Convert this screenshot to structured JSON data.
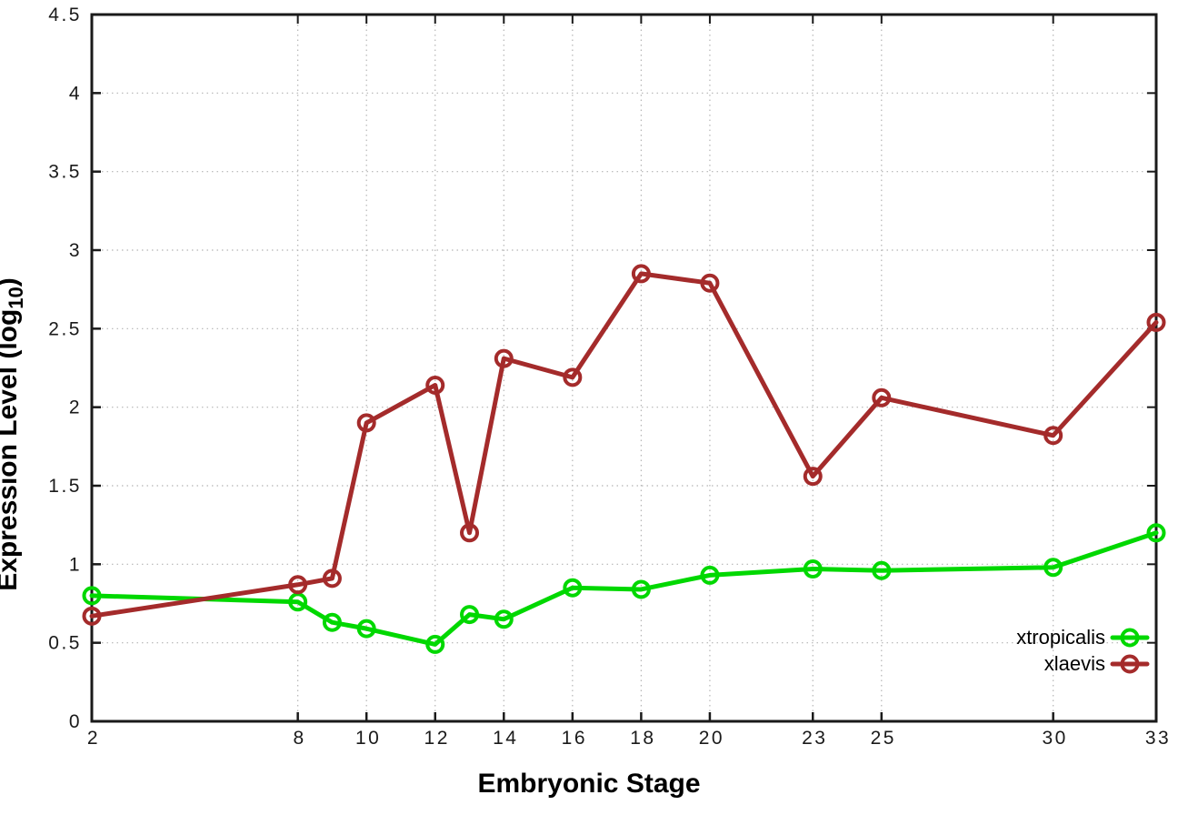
{
  "chart_data": {
    "type": "line",
    "xlabel": "Embryonic Stage",
    "ylabel": "Expression Level (log10)",
    "ylabel_parts": {
      "prefix": "Expression Level (log",
      "subscript": "10",
      "suffix": ")"
    },
    "x": [
      2,
      8,
      9,
      10,
      12,
      13,
      14,
      16,
      18,
      20,
      23,
      25,
      30,
      33
    ],
    "series": [
      {
        "name": "xtropicalis",
        "color": "#00d800",
        "values": [
          0.8,
          0.76,
          0.63,
          0.59,
          0.49,
          0.68,
          0.65,
          0.85,
          0.84,
          0.93,
          0.97,
          0.96,
          0.98,
          1.2
        ]
      },
      {
        "name": "xlaevis",
        "color": "#a42b2b",
        "values": [
          0.67,
          0.87,
          0.91,
          1.9,
          2.14,
          1.2,
          2.31,
          2.19,
          2.85,
          2.79,
          1.56,
          2.06,
          1.82,
          2.54
        ]
      }
    ],
    "xlim": [
      2,
      33
    ],
    "ylim": [
      0,
      4.5
    ],
    "xticks": [
      2,
      8,
      10,
      12,
      14,
      16,
      18,
      20,
      23,
      25,
      30,
      33
    ],
    "xtick_labels": [
      "2",
      "8",
      "10",
      "12",
      "14",
      "16",
      "18",
      "20",
      "23",
      "25",
      "30",
      "33"
    ],
    "yticks": [
      0,
      0.5,
      1,
      1.5,
      2,
      2.5,
      3,
      3.5,
      4,
      4.5
    ],
    "ytick_labels": [
      "0",
      "0.5",
      "1",
      "1.5",
      "2",
      "2.5",
      "3",
      "3.5",
      "4",
      "4.5"
    ],
    "grid": true,
    "legend": {
      "position": "inside-bottom-right",
      "entries": [
        {
          "label": "xtropicalis",
          "color": "#00d800"
        },
        {
          "label": "xlaevis",
          "color": "#a42b2b"
        }
      ]
    },
    "colors": {
      "background": "#ffffff",
      "plot_border": "#1a1a1a",
      "grid": "#b5b5b5",
      "tick": "#1a1a1a"
    }
  }
}
